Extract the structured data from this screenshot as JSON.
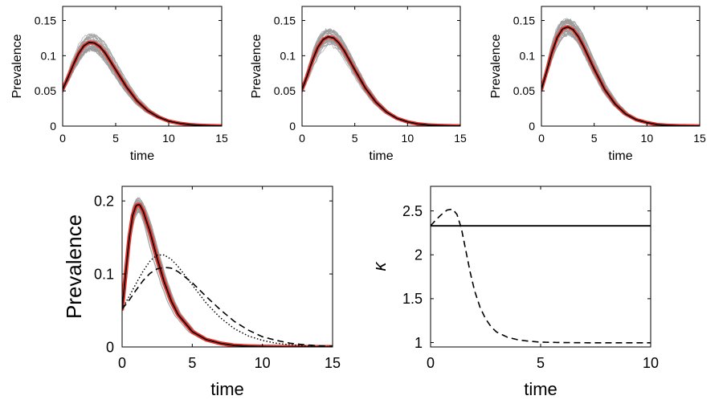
{
  "chart_data": [
    {
      "type": "line",
      "panel": "top-left",
      "xlabel": "time",
      "ylabel": "Prevalence",
      "xlim": [
        0,
        15
      ],
      "ylim": [
        0,
        0.17
      ],
      "xticks": [
        "0",
        "5",
        "10",
        "15"
      ],
      "yticks": [
        "0",
        "0.05",
        "0.1",
        "0.15"
      ],
      "grid": false,
      "colors": {
        "band": "#9a9a9a",
        "mean": "#000000",
        "model": "#e8322a"
      },
      "series": [
        {
          "role": "mean",
          "x": [
            0,
            0.5,
            1,
            1.5,
            2,
            2.5,
            3,
            3.5,
            4,
            5,
            6,
            7,
            8,
            9,
            10,
            11,
            12,
            13,
            14,
            15
          ],
          "y": [
            0.052,
            0.069,
            0.087,
            0.103,
            0.114,
            0.119,
            0.118,
            0.113,
            0.104,
            0.08,
            0.056,
            0.036,
            0.022,
            0.013,
            0.007,
            0.004,
            0.002,
            0.001,
            0.0005,
            0.0002
          ]
        },
        {
          "role": "band",
          "spread": 0.011
        }
      ]
    },
    {
      "type": "line",
      "panel": "top-middle",
      "xlabel": "time",
      "ylabel": "Prevalence",
      "xlim": [
        0,
        15
      ],
      "ylim": [
        0,
        0.17
      ],
      "xticks": [
        "0",
        "5",
        "10",
        "15"
      ],
      "yticks": [
        "0",
        "0.05",
        "0.1",
        "0.15"
      ],
      "grid": false,
      "colors": {
        "band": "#9a9a9a",
        "mean": "#000000",
        "model": "#e8322a"
      },
      "series": [
        {
          "role": "mean",
          "x": [
            0,
            0.5,
            1,
            1.5,
            2,
            2.5,
            3,
            3.5,
            4,
            5,
            6,
            7,
            8,
            9,
            10,
            11,
            12,
            13,
            14,
            15
          ],
          "y": [
            0.052,
            0.072,
            0.094,
            0.112,
            0.123,
            0.127,
            0.125,
            0.118,
            0.107,
            0.08,
            0.054,
            0.034,
            0.02,
            0.011,
            0.006,
            0.003,
            0.0015,
            0.0008,
            0.0004,
            0.0002
          ]
        },
        {
          "role": "band",
          "spread": 0.011
        }
      ]
    },
    {
      "type": "line",
      "panel": "top-right",
      "xlabel": "time",
      "ylabel": "Prevalence",
      "xlim": [
        0,
        15
      ],
      "ylim": [
        0,
        0.17
      ],
      "xticks": [
        "0",
        "5",
        "10",
        "15"
      ],
      "yticks": [
        "0",
        "0.05",
        "0.1",
        "0.15"
      ],
      "grid": false,
      "colors": {
        "band": "#9a9a9a",
        "mean": "#000000",
        "model": "#e8322a"
      },
      "series": [
        {
          "role": "mean",
          "x": [
            0,
            0.5,
            1,
            1.5,
            2,
            2.5,
            3,
            3.5,
            4,
            5,
            6,
            7,
            8,
            9,
            10,
            11,
            12,
            13,
            14,
            15
          ],
          "y": [
            0.052,
            0.078,
            0.105,
            0.126,
            0.138,
            0.141,
            0.137,
            0.127,
            0.113,
            0.081,
            0.052,
            0.031,
            0.017,
            0.009,
            0.005,
            0.002,
            0.001,
            0.0005,
            0.0003,
            0.0001
          ]
        },
        {
          "role": "band",
          "spread": 0.012
        }
      ]
    },
    {
      "type": "line",
      "panel": "bottom-left",
      "xlabel": "time",
      "ylabel": "Prevalence",
      "xlim": [
        0,
        15
      ],
      "ylim": [
        0,
        0.22
      ],
      "xticks": [
        "0",
        "5",
        "10",
        "15"
      ],
      "yticks": [
        "0",
        "0.1",
        "0.2"
      ],
      "grid": false,
      "colors": {
        "band": "#9a9a9a",
        "mean": "#000000",
        "model": "#e8322a"
      },
      "series": [
        {
          "role": "mean",
          "x": [
            0,
            0.25,
            0.5,
            0.75,
            1,
            1.25,
            1.5,
            2,
            2.5,
            3,
            3.5,
            4,
            5,
            6,
            7,
            8,
            9,
            10,
            11,
            12,
            13,
            14,
            15
          ],
          "y": [
            0.052,
            0.1,
            0.148,
            0.18,
            0.194,
            0.195,
            0.186,
            0.157,
            0.121,
            0.089,
            0.063,
            0.044,
            0.021,
            0.01,
            0.005,
            0.002,
            0.001,
            0.0005,
            0.0002,
            0.0001,
            5e-05,
            2e-05,
            1e-05
          ]
        },
        {
          "role": "band",
          "spread": 0.01
        },
        {
          "role": "dotted",
          "x": [
            0,
            0.5,
            1,
            1.5,
            2,
            2.5,
            3,
            3.5,
            4,
            5,
            6,
            7,
            8,
            9,
            10,
            11,
            12,
            13,
            14,
            15
          ],
          "y": [
            0.052,
            0.069,
            0.087,
            0.104,
            0.118,
            0.126,
            0.126,
            0.12,
            0.11,
            0.085,
            0.06,
            0.04,
            0.025,
            0.015,
            0.009,
            0.005,
            0.003,
            0.0015,
            0.0008,
            0.0004
          ]
        },
        {
          "role": "dashed",
          "x": [
            0,
            0.5,
            1,
            1.5,
            2,
            2.5,
            3,
            3.5,
            4,
            5,
            6,
            7,
            8,
            9,
            10,
            11,
            12,
            13,
            14,
            15
          ],
          "y": [
            0.052,
            0.064,
            0.078,
            0.091,
            0.101,
            0.107,
            0.109,
            0.108,
            0.103,
            0.088,
            0.069,
            0.051,
            0.035,
            0.023,
            0.014,
            0.009,
            0.005,
            0.003,
            0.0017,
            0.001
          ]
        }
      ]
    },
    {
      "type": "line",
      "panel": "bottom-right",
      "xlabel": "time",
      "ylabel": "κ",
      "xlim": [
        0,
        10
      ],
      "ylim": [
        0.95,
        2.78
      ],
      "xticks": [
        "0",
        "5",
        "10"
      ],
      "yticks": [
        "1",
        "1.5",
        "2",
        "2.5"
      ],
      "grid": false,
      "series": [
        {
          "role": "solid",
          "x": [
            0,
            10
          ],
          "y": [
            2.33,
            2.33
          ]
        },
        {
          "role": "dashed",
          "x": [
            0,
            0.25,
            0.5,
            0.75,
            1,
            1.2,
            1.4,
            1.6,
            1.8,
            2,
            2.25,
            2.5,
            2.75,
            3,
            3.5,
            4,
            4.5,
            5,
            6,
            7,
            8,
            9,
            10
          ],
          "y": [
            2.33,
            2.4,
            2.46,
            2.51,
            2.52,
            2.46,
            2.3,
            2.05,
            1.8,
            1.59,
            1.4,
            1.27,
            1.18,
            1.12,
            1.06,
            1.03,
            1.015,
            1.005,
            1.0,
            0.998,
            0.997,
            0.997,
            0.997
          ]
        }
      ]
    }
  ]
}
